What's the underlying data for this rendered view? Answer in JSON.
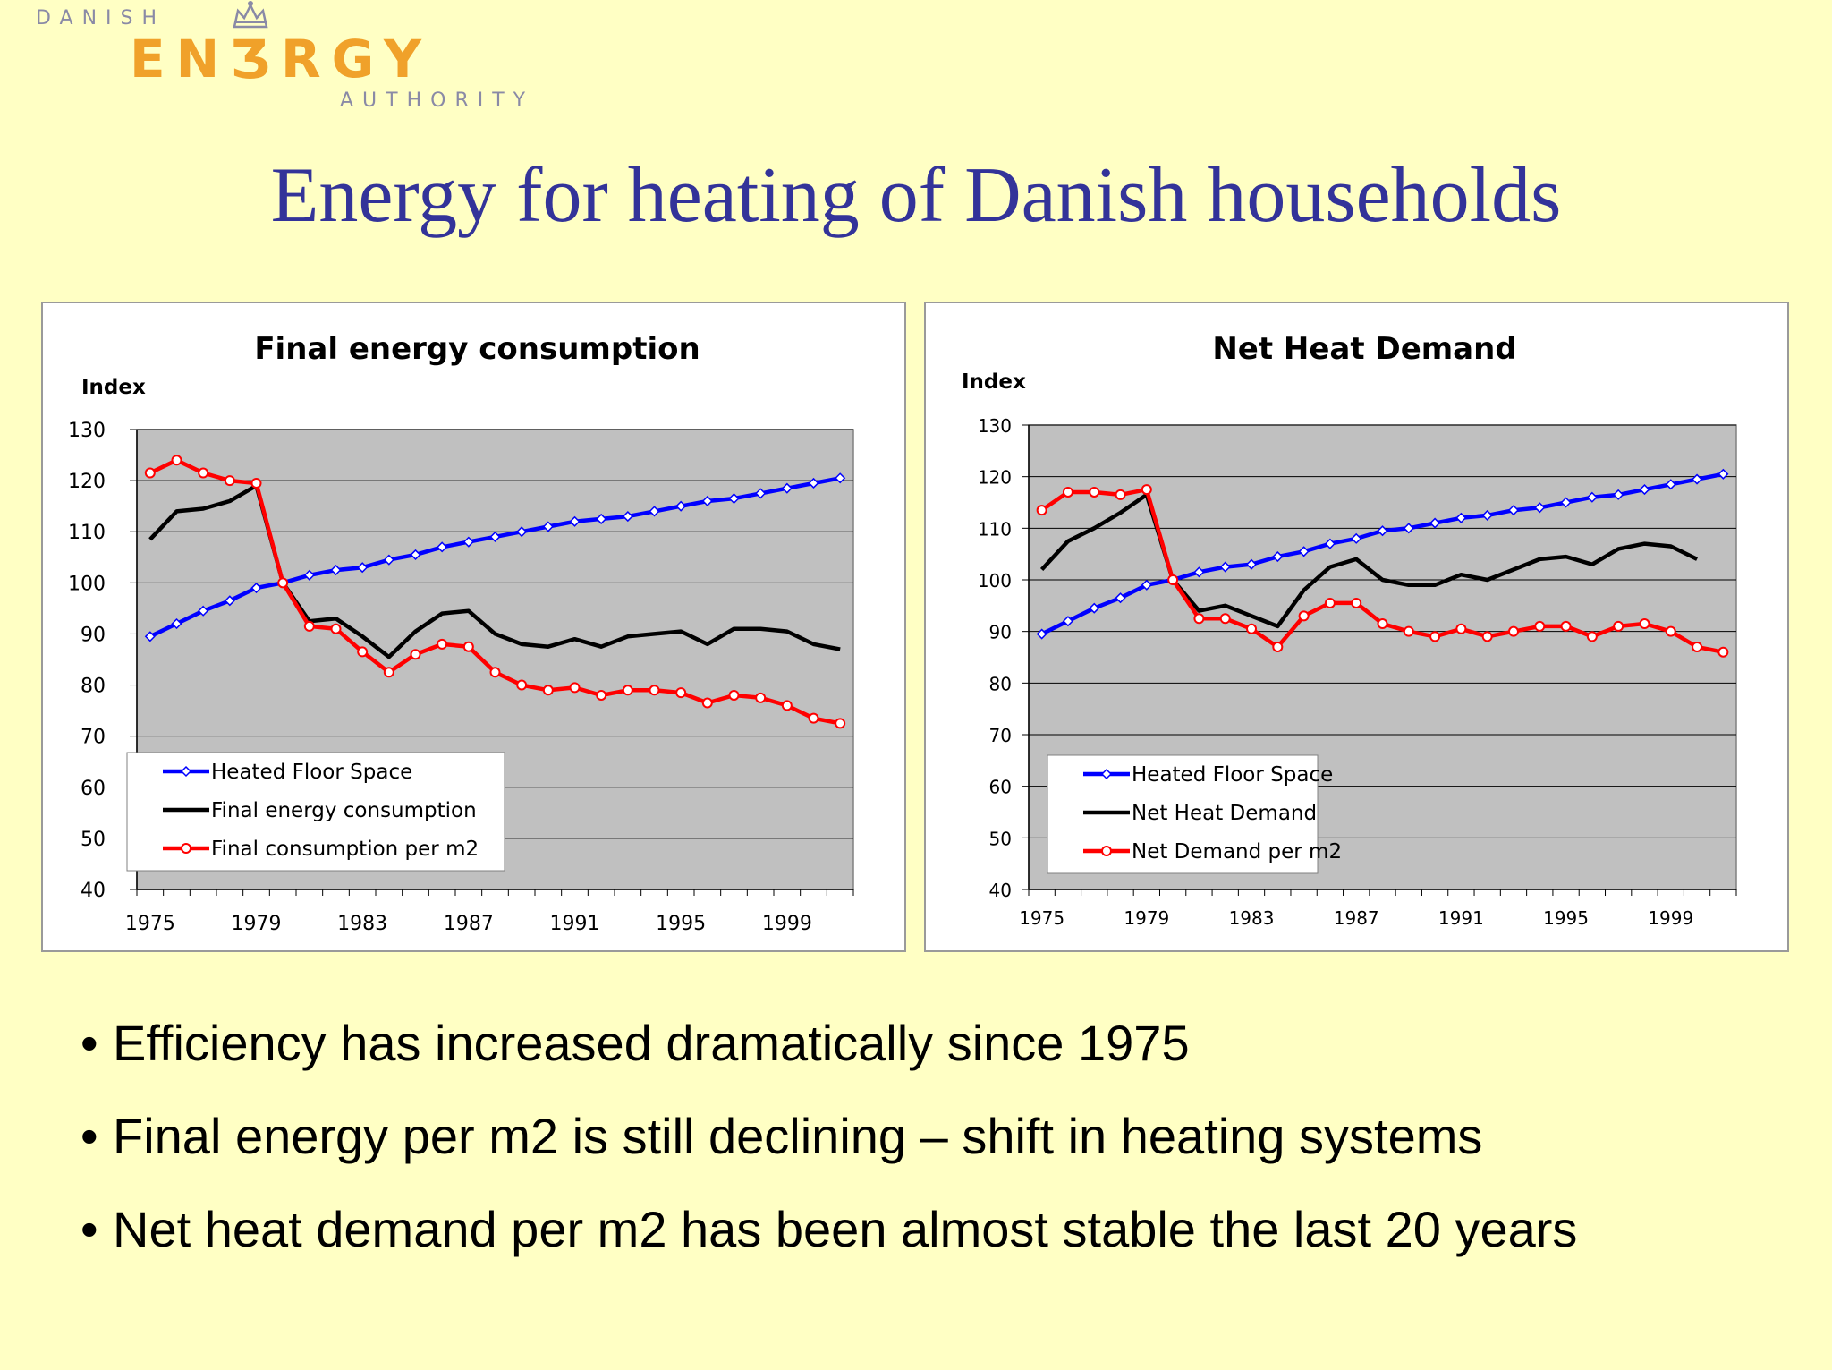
{
  "logo": {
    "line1": "DANISH",
    "line2": "ENƷRGY",
    "line3": "AUTHORITY",
    "text": "DANISH ENERGY AUTHORITY",
    "crown_icon": "crown-icon",
    "colors": {
      "orange": "#f0a12a",
      "grey": "#8a8aa6"
    }
  },
  "title": "Energy for heating of Danish households",
  "bullets": [
    "Efficiency has increased dramatically since 1975",
    "Final energy per m2 is still declining – shift in heating systems",
    "Net heat demand per m2 has been almost stable the last 20 years"
  ],
  "colors": {
    "background": "#ffffc4",
    "plot_area": "#c0c0c0",
    "floor_space": "#0000ff",
    "consumption": "#000000",
    "per_m2": "#ff0000",
    "title_blue": "#333399"
  },
  "chart_data": [
    {
      "type": "line",
      "title": "Final energy consumption",
      "ylabel": "Index",
      "xlabel": "",
      "ylim": [
        40,
        130
      ],
      "yticks": [
        40,
        50,
        60,
        70,
        80,
        90,
        100,
        110,
        120,
        130
      ],
      "x": [
        1975,
        1976,
        1977,
        1978,
        1979,
        1980,
        1981,
        1982,
        1983,
        1984,
        1985,
        1986,
        1987,
        1988,
        1989,
        1990,
        1991,
        1992,
        1993,
        1994,
        1995,
        1996,
        1997,
        1998,
        1999,
        2000,
        2001
      ],
      "xtick_labels": [
        "1975",
        "1979",
        "1983",
        "1987",
        "1991",
        "1995",
        "1999"
      ],
      "grid": true,
      "legend_position": "bottom-left",
      "series": [
        {
          "name": "Heated Floor Space",
          "color": "#0000ff",
          "marker": "diamond",
          "values": [
            89.5,
            92,
            94.5,
            96.5,
            99,
            100,
            101.5,
            102.5,
            103,
            104.5,
            105.5,
            107,
            108,
            109,
            110,
            111,
            112,
            112.5,
            113,
            114,
            115,
            116,
            116.5,
            117.5,
            118.5,
            119.5,
            120.5
          ]
        },
        {
          "name": "Final energy consumption",
          "color": "#000000",
          "marker": "none",
          "values": [
            108.5,
            114,
            114.5,
            116,
            119,
            100,
            92.5,
            93,
            89.5,
            85.5,
            90.5,
            94,
            94.5,
            90,
            88,
            87.5,
            89,
            87.5,
            89.5,
            90,
            90.5,
            88,
            91,
            91,
            90.5,
            88,
            87
          ]
        },
        {
          "name": "Final consumption per m2",
          "color": "#ff0000",
          "marker": "circle",
          "values": [
            121.5,
            124,
            121.5,
            120,
            119.5,
            100,
            91.5,
            91,
            86.5,
            82.5,
            86,
            88,
            87.5,
            82.5,
            80,
            79,
            79.5,
            78,
            79,
            79,
            78.5,
            76.5,
            78,
            77.5,
            76,
            73.5,
            72.5
          ]
        }
      ]
    },
    {
      "type": "line",
      "title": "Net Heat Demand",
      "ylabel": "Index",
      "xlabel": "",
      "ylim": [
        40,
        130
      ],
      "yticks": [
        40,
        50,
        60,
        70,
        80,
        90,
        100,
        110,
        120,
        130
      ],
      "x": [
        1975,
        1976,
        1977,
        1978,
        1979,
        1980,
        1981,
        1982,
        1983,
        1984,
        1985,
        1986,
        1987,
        1988,
        1989,
        1990,
        1991,
        1992,
        1993,
        1994,
        1995,
        1996,
        1997,
        1998,
        1999,
        2000,
        2001
      ],
      "xtick_labels": [
        "1975",
        "1979",
        "1983",
        "1987",
        "1991",
        "1995",
        "1999"
      ],
      "grid": true,
      "legend_position": "bottom-left",
      "series": [
        {
          "name": "Heated Floor Space",
          "color": "#0000ff",
          "marker": "diamond",
          "values": [
            89.5,
            92,
            94.5,
            96.5,
            99,
            100,
            101.5,
            102.5,
            103,
            104.5,
            105.5,
            107,
            108,
            109.5,
            110,
            111,
            112,
            112.5,
            113.5,
            114,
            115,
            116,
            116.5,
            117.5,
            118.5,
            119.5,
            120.5
          ]
        },
        {
          "name": "Net Heat Demand",
          "color": "#000000",
          "marker": "none",
          "values": [
            102,
            107.5,
            110,
            113,
            116.5,
            100,
            94,
            95,
            93,
            91,
            98,
            102.5,
            104,
            100,
            99,
            99,
            101,
            100,
            102,
            104,
            104.5,
            103,
            106,
            107,
            106.5,
            104,
            null
          ]
        },
        {
          "name": "Net Demand per m2",
          "color": "#ff0000",
          "marker": "circle",
          "values": [
            113.5,
            117,
            117,
            116.5,
            117.5,
            100,
            92.5,
            92.5,
            90.5,
            87,
            93,
            95.5,
            95.5,
            91.5,
            90,
            89,
            90.5,
            89,
            90,
            91,
            91,
            89,
            91,
            91.5,
            90,
            87,
            86
          ]
        }
      ]
    }
  ]
}
